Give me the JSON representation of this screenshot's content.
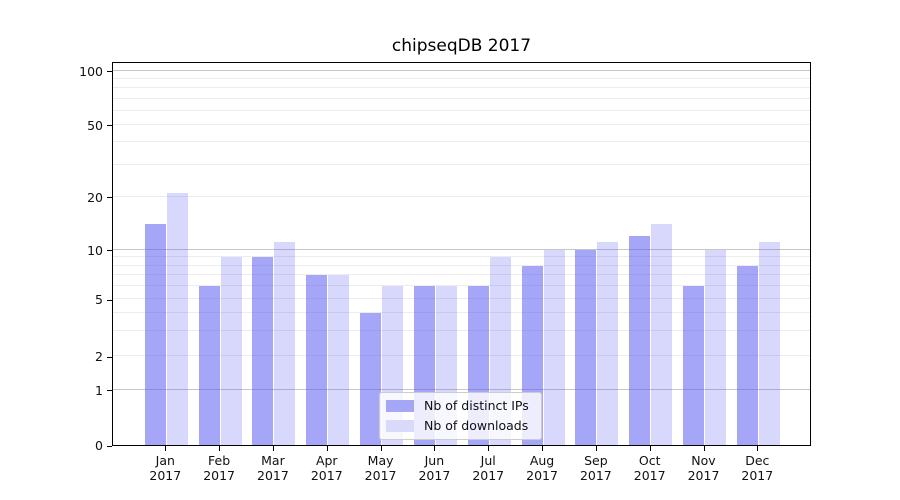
{
  "chart_data": {
    "type": "bar",
    "title": "chipseqDB 2017",
    "categories": [
      "Jan 2017",
      "Feb 2017",
      "Mar 2017",
      "Apr 2017",
      "May 2017",
      "Jun 2017",
      "Jul 2017",
      "Aug 2017",
      "Sep 2017",
      "Oct 2017",
      "Nov 2017",
      "Dec 2017"
    ],
    "months": [
      "Jan",
      "Feb",
      "Mar",
      "Apr",
      "May",
      "Jun",
      "Jul",
      "Aug",
      "Sep",
      "Oct",
      "Nov",
      "Dec"
    ],
    "year_label": "2017",
    "series": [
      {
        "name": "Nb of distinct IPs",
        "color": "rgba(92,92,242,0.55)",
        "legend_hex": "#a6a6f6",
        "values": [
          14,
          6,
          9,
          7,
          4,
          6,
          6,
          8,
          10,
          12,
          6,
          8
        ]
      },
      {
        "name": "Nb of downloads",
        "color": "rgba(92,92,242,0.24)",
        "legend_hex": "#d9d9fa",
        "values": [
          21,
          9,
          11,
          7,
          6,
          6,
          9,
          10,
          11,
          14,
          10,
          11
        ]
      }
    ],
    "y_axis": {
      "scale": "log-1-2-5 (linear below 1, zero shown)",
      "tick_values": [
        0,
        1,
        2,
        5,
        10,
        20,
        50,
        100
      ],
      "tick_labels": [
        "0",
        "1",
        "2",
        "5",
        "10",
        "20",
        "50",
        "100"
      ],
      "minor_gridline_values": [
        2,
        3,
        4,
        5,
        6,
        7,
        8,
        9,
        20,
        30,
        40,
        50,
        60,
        70,
        80,
        90
      ],
      "major_gridline_values": [
        1,
        10,
        100
      ],
      "ylim": [
        0,
        110
      ]
    },
    "legend": {
      "position": "lower center",
      "entries": [
        "Nb of distinct IPs",
        "Nb of downloads"
      ]
    },
    "grid": true
  },
  "colors": {
    "background": "#ffffff",
    "axis_frame": "#000000",
    "major_grid": "#c6c6c6",
    "minor_grid": "#ececec",
    "text": "#111111"
  }
}
